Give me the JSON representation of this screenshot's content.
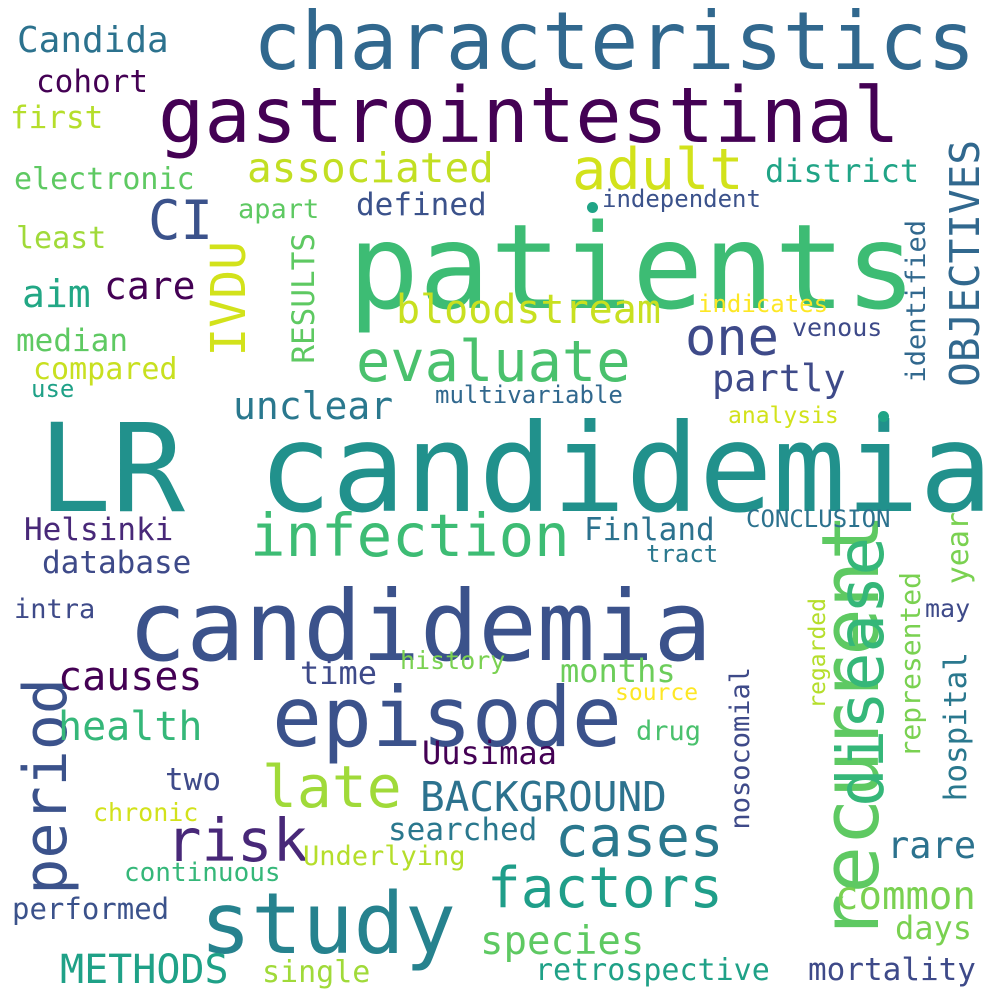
{
  "words": [
    {
      "text": "LR candidemia",
      "color": "#21918c"
    },
    {
      "text": "patients",
      "color": "#3dbc74"
    },
    {
      "text": "characteristics",
      "color": "#31688e"
    },
    {
      "text": "gastrointestinal",
      "color": "#440154"
    },
    {
      "text": "candidemia",
      "color": "#3b528b"
    },
    {
      "text": "episode",
      "color": "#3b528b"
    },
    {
      "text": "study",
      "color": "#26828e"
    },
    {
      "text": "recurrent",
      "color": "#5ec962"
    },
    {
      "text": "disease",
      "color": "#35b779"
    },
    {
      "text": "infection",
      "color": "#3dbc74"
    },
    {
      "text": "factors",
      "color": "#1f9e89"
    },
    {
      "text": "evaluate",
      "color": "#4ac16d"
    },
    {
      "text": "adult",
      "color": "#d2e21b"
    },
    {
      "text": "period",
      "color": "#3b528b"
    },
    {
      "text": "late",
      "color": "#a0da39"
    },
    {
      "text": "risk",
      "color": "#482878"
    },
    {
      "text": "cases",
      "color": "#2a788e"
    },
    {
      "text": "one",
      "color": "#3e4a89"
    },
    {
      "text": "CI",
      "color": "#3b528b"
    },
    {
      "text": "IVDU",
      "color": "#d2e21b"
    },
    {
      "text": "associated",
      "color": "#c2df23"
    },
    {
      "text": "bloodstream",
      "color": "#c8e020"
    },
    {
      "text": "OBJECTIVES",
      "color": "#31688e"
    },
    {
      "text": "BACKGROUND",
      "color": "#2c728e"
    },
    {
      "text": "common",
      "color": "#7ad151"
    },
    {
      "text": "species",
      "color": "#5ec962"
    },
    {
      "text": "METHODS",
      "color": "#1fa187"
    },
    {
      "text": "health",
      "color": "#35b779"
    },
    {
      "text": "causes",
      "color": "#440154"
    },
    {
      "text": "unclear",
      "color": "#2a788e"
    },
    {
      "text": "partly",
      "color": "#3e4a89"
    },
    {
      "text": "Candida",
      "color": "#2c728e"
    },
    {
      "text": "Helsinki",
      "color": "#482878"
    },
    {
      "text": "Finland",
      "color": "#2c728e"
    },
    {
      "text": "Uusimaa",
      "color": "#440154"
    },
    {
      "text": "time",
      "color": "#3e4a89"
    },
    {
      "text": "months",
      "color": "#6ccd5a"
    },
    {
      "text": "care",
      "color": "#440154"
    },
    {
      "text": "aim",
      "color": "#22a785"
    },
    {
      "text": "district",
      "color": "#20a486"
    },
    {
      "text": "defined",
      "color": "#3b528b"
    },
    {
      "text": "RESULTS",
      "color": "#5ec962"
    },
    {
      "text": "identified",
      "color": "#31688e"
    },
    {
      "text": "database",
      "color": "#3e4a89"
    },
    {
      "text": "represented",
      "color": "#7ad151"
    },
    {
      "text": "hospital",
      "color": "#2a788e"
    },
    {
      "text": "nosocomial",
      "color": "#3e4a89"
    },
    {
      "text": "searched",
      "color": "#2a788e"
    },
    {
      "text": "rare",
      "color": "#2c728e"
    },
    {
      "text": "retrospective",
      "color": "#1fa187"
    },
    {
      "text": "mortality",
      "color": "#3e4a89"
    },
    {
      "text": "single",
      "color": "#a0da39"
    },
    {
      "text": "performed",
      "color": "#3b528b"
    },
    {
      "text": "days",
      "color": "#7ad151"
    },
    {
      "text": "year",
      "color": "#7ad151"
    },
    {
      "text": "two",
      "color": "#3e4a89"
    },
    {
      "text": "drug",
      "color": "#4ac16d"
    },
    {
      "text": "chronic",
      "color": "#d2e21b"
    },
    {
      "text": "Underlying",
      "color": "#b5de2b"
    },
    {
      "text": "continuous",
      "color": "#35b779"
    },
    {
      "text": "history",
      "color": "#7ad151"
    },
    {
      "text": "source",
      "color": "#fde725"
    },
    {
      "text": "regarded",
      "color": "#b5de2b"
    },
    {
      "text": "may",
      "color": "#3e4a89"
    },
    {
      "text": "intra",
      "color": "#3e4a89"
    },
    {
      "text": "tract",
      "color": "#2a788e"
    },
    {
      "text": "CONCLUSION",
      "color": "#2c728e"
    },
    {
      "text": "cohort",
      "color": "#440154"
    },
    {
      "text": "first",
      "color": "#b5de2b"
    },
    {
      "text": "electronic",
      "color": "#5ec962"
    },
    {
      "text": "least",
      "color": "#a0da39"
    },
    {
      "text": "apart",
      "color": "#5ec962"
    },
    {
      "text": "median",
      "color": "#5ec962"
    },
    {
      "text": "compared",
      "color": "#c8e020"
    },
    {
      "text": "use",
      "color": "#1fa187"
    },
    {
      "text": "indicates",
      "color": "#fde725"
    },
    {
      "text": "venous",
      "color": "#3e4a89"
    },
    {
      "text": "independent",
      "color": "#3b528b"
    },
    {
      "text": "multivariable",
      "color": "#31688e"
    },
    {
      "text": "analysis",
      "color": "#d2e21b"
    }
  ],
  "dots": [
    {
      "color": "#20a486"
    },
    {
      "color": "#20a486"
    }
  ]
}
